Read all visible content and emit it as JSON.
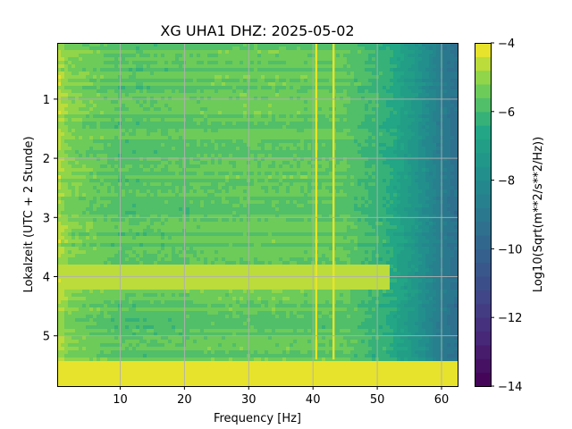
{
  "chart_data": {
    "type": "heatmap",
    "title": "XG UHA1  DHZ: 2025-05-02",
    "xlabel": "Frequency [Hz]",
    "ylabel": "Lokalzeit (UTC + 2 Stunde)",
    "xlim": [
      0.2,
      62.5
    ],
    "ylim": [
      5.85,
      0.05
    ],
    "x_ticks": [
      10,
      20,
      30,
      40,
      50,
      60
    ],
    "y_ticks": [
      1,
      2,
      3,
      4,
      5
    ],
    "grid": true,
    "colormap": "viridis",
    "colorbar": {
      "label": "Log10(Sqrt(m**2/s**2/Hz))",
      "range": [
        -14,
        -4
      ],
      "ticks": [
        -4,
        -6,
        -8,
        -10,
        -12,
        -14
      ],
      "levels": 25
    },
    "features": {
      "background_level": -5.5,
      "low_frequency_level": -4.6,
      "rolloff": [
        {
          "hz": 0.2,
          "level": -4.6
        },
        {
          "hz": 2,
          "level": -5.2
        },
        {
          "hz": 10,
          "level": -5.7
        },
        {
          "hz": 30,
          "level": -5.5
        },
        {
          "hz": 45,
          "level": -5.6
        },
        {
          "hz": 52,
          "level": -6.4
        },
        {
          "hz": 56,
          "level": -7.4
        },
        {
          "hz": 60,
          "level": -8.8
        },
        {
          "hz": 62.5,
          "level": -9.4
        }
      ],
      "vertical_lines_hz": [
        40.5,
        43.2
      ],
      "vertical_line_level": -4.3,
      "horizontal_band_hours": [
        3.78,
        4.22
      ],
      "horizontal_band_level": -4.6,
      "saturated_rows_hours": [
        5.4,
        5.85
      ],
      "saturated_level": -4.0
    }
  }
}
